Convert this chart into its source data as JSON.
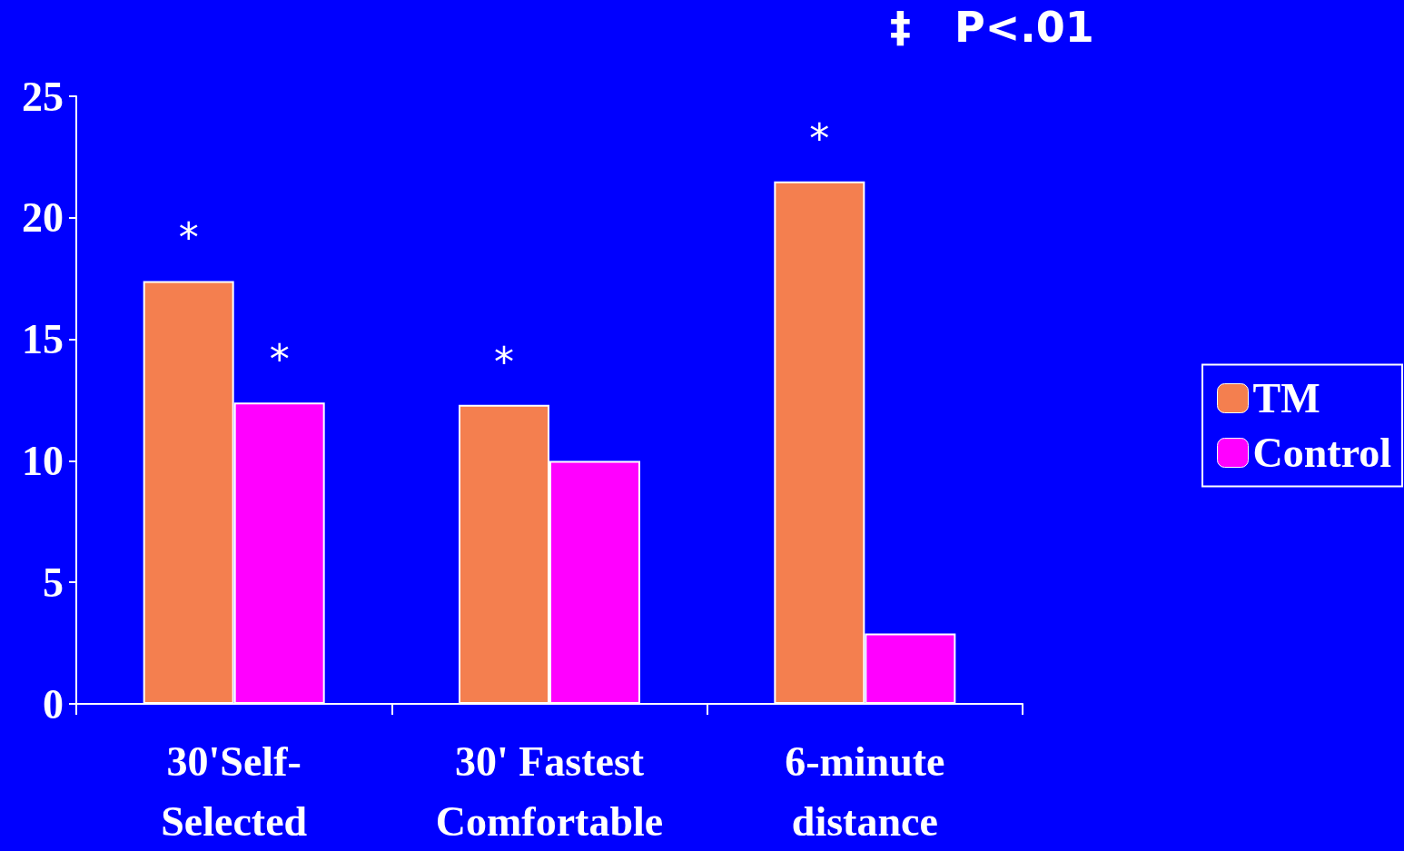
{
  "chart_data": {
    "type": "bar",
    "categories": [
      "30'Self-\nSelected",
      "30' Fastest\nComfortable",
      "6-minute\ndistance"
    ],
    "series": [
      {
        "name": "TM",
        "color": "#f47f4f",
        "values": [
          17.4,
          12.3,
          21.5
        ]
      },
      {
        "name": "Control",
        "color": "#ff00ff",
        "values": [
          12.4,
          10.0,
          2.9
        ]
      }
    ],
    "ylim": [
      0,
      25
    ],
    "yticks": [
      0,
      5,
      10,
      15,
      20,
      25
    ],
    "grid": false,
    "legend": "right",
    "annotations": [
      {
        "text": "*",
        "x": "30'Self-\nSelected",
        "y": 17.4
      },
      {
        "text": "*",
        "x": "30'Self-\nSelected",
        "y": 12.4
      },
      {
        "text": "*",
        "x": "30' Fastest\nComfortable",
        "y": 12.3
      },
      {
        "text": "*",
        "x": "6-minute\ndistance",
        "y": 21.5
      },
      "‡   P<.01"
    ]
  }
}
